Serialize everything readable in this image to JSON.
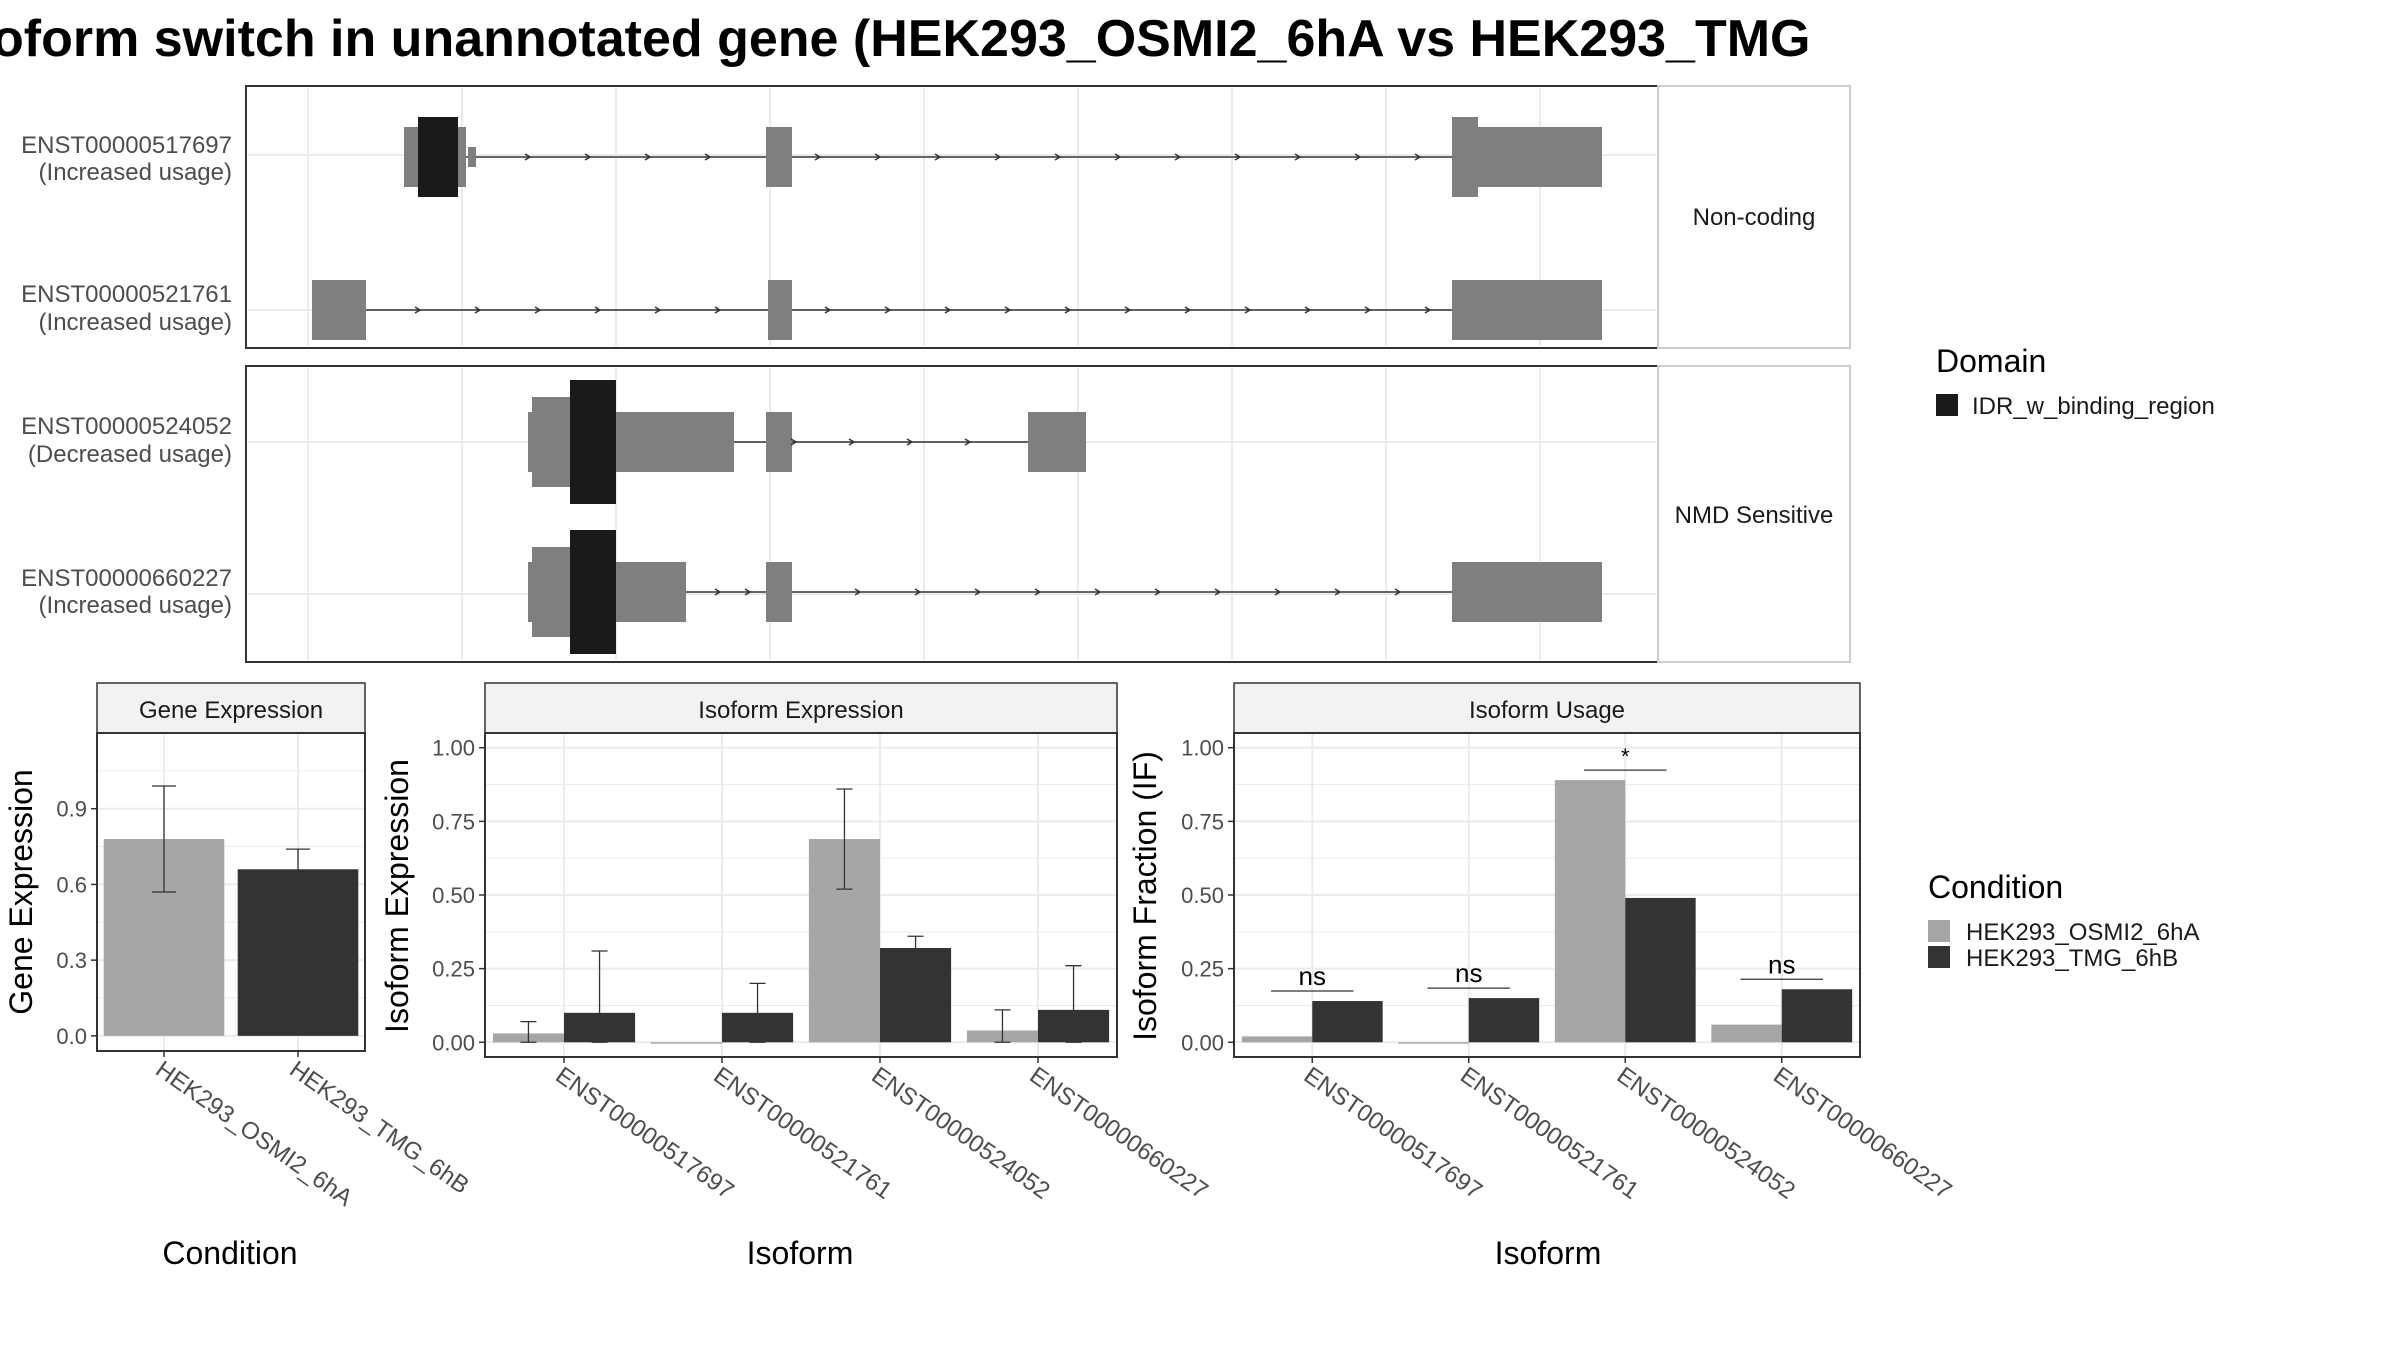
{
  "title": "oform switch in unannotated gene (HEK293_OSMI2_6hA vs HEK293_TMG",
  "colors": {
    "cond1": "#a6a6a6",
    "cond2": "#333333",
    "exon": "#7f7f7f",
    "domain": "#1a1a1a",
    "strip": "#f2f2f2",
    "grid": "#ebebeb",
    "frame": "#333333"
  },
  "legend_domain": {
    "title": "Domain",
    "items": [
      "IDR_w_binding_region"
    ]
  },
  "legend_condition": {
    "title": "Condition",
    "items": [
      "HEK293_OSMI2_6hA",
      "HEK293_TMG_6hB"
    ]
  },
  "chart_data": [
    {
      "type": "gene-structure",
      "panels": [
        {
          "strip": "Non-coding",
          "isoforms": [
            {
              "id": "ENST00000517697",
              "label": "ENST00000517697",
              "usage": "(Increased usage)"
            },
            {
              "id": "ENST00000521761",
              "label": "ENST00000521761",
              "usage": "(Increased usage)"
            }
          ]
        },
        {
          "strip": "NMD Sensitive",
          "isoforms": [
            {
              "id": "ENST00000524052",
              "label": "ENST00000524052",
              "usage": "(Decreased usage)"
            },
            {
              "id": "ENST00000660227",
              "label": "ENST00000660227",
              "usage": "(Increased usage)"
            }
          ]
        }
      ]
    },
    {
      "type": "bar",
      "panel": "Gene Expression",
      "xlabel": "Condition",
      "ylabel": "Gene Expression",
      "categories": [
        "HEK293_OSMI2_6hA",
        "HEK293_TMG_6hB"
      ],
      "values": [
        0.78,
        0.66
      ],
      "err_low": [
        0.57,
        0.58
      ],
      "err_high": [
        0.99,
        0.74
      ],
      "ylim": [
        -0.06,
        1.2
      ],
      "yticks": [
        "0.0",
        "0.3",
        "0.6",
        "0.9"
      ]
    },
    {
      "type": "bar",
      "panel": "Isoform Expression",
      "xlabel": "Isoform",
      "ylabel": "Isoform Expression",
      "categories": [
        "ENST00000517697",
        "ENST00000521761",
        "ENST00000524052",
        "ENST00000660227"
      ],
      "series": [
        {
          "name": "HEK293_OSMI2_6hA",
          "values": [
            0.03,
            0.0,
            0.69,
            0.04
          ],
          "err_low": [
            0.0,
            0.0,
            0.52,
            0.0
          ],
          "err_high": [
            0.07,
            0.0,
            0.86,
            0.11
          ]
        },
        {
          "name": "HEK293_TMG_6hB",
          "values": [
            0.1,
            0.1,
            0.32,
            0.11
          ],
          "err_low": [
            0.0,
            0.0,
            0.29,
            0.0
          ],
          "err_high": [
            0.31,
            0.2,
            0.36,
            0.26
          ]
        }
      ],
      "ylim": [
        -0.05,
        1.05
      ],
      "yticks": [
        "0.00",
        "0.25",
        "0.50",
        "0.75",
        "1.00"
      ]
    },
    {
      "type": "bar",
      "panel": "Isoform Usage",
      "xlabel": "Isoform",
      "ylabel": "Isoform Fraction (IF)",
      "categories": [
        "ENST00000517697",
        "ENST00000521761",
        "ENST00000524052",
        "ENST00000660227"
      ],
      "series": [
        {
          "name": "HEK293_OSMI2_6hA",
          "values": [
            0.02,
            0.0,
            0.89,
            0.06
          ]
        },
        {
          "name": "HEK293_TMG_6hB",
          "values": [
            0.14,
            0.15,
            0.49,
            0.18
          ]
        }
      ],
      "significance": [
        "ns",
        "ns",
        "*",
        "ns"
      ],
      "ylim": [
        -0.05,
        1.05
      ],
      "yticks": [
        "0.00",
        "0.25",
        "0.50",
        "0.75",
        "1.00"
      ]
    }
  ]
}
